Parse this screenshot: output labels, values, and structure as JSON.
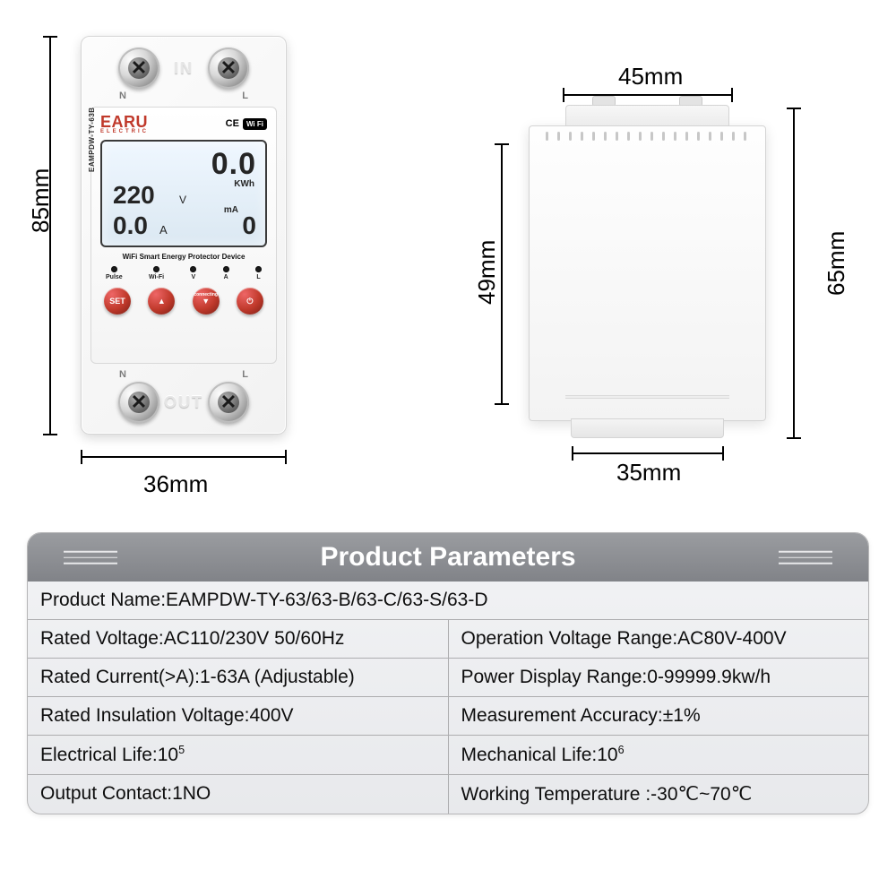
{
  "dimensions": {
    "front_height": "85mm",
    "front_width": "36mm",
    "side_top_width": "45mm",
    "side_bottom_width": "35mm",
    "side_height": "65mm",
    "side_inner_height": "49mm"
  },
  "device": {
    "brand": "EARU",
    "brand_sub": "ELECTRIC",
    "cert": "CE",
    "conn": "Wi Fi",
    "model_vertical": "EAMPDW-TY-63B",
    "subtitle": "WiFi Smart Energy Protector Device",
    "terminal_in": "IN",
    "terminal_out": "OUT",
    "terminal_n": "N",
    "terminal_l": "L",
    "lcd": {
      "kwh_value": "0.0",
      "kwh_unit": "KWh",
      "voltage": "220",
      "voltage_unit": "V",
      "current": "0.0",
      "current_unit": "A",
      "leak_unit": "mA",
      "leak_value": "0"
    },
    "leds": [
      "Pulse",
      "Wi-Fi",
      "V",
      "A",
      "L"
    ],
    "buttons": [
      {
        "label": "SET",
        "bg": "#c0392b"
      },
      {
        "label": "▲",
        "bg": "#c0392b"
      },
      {
        "label": "▼",
        "bg": "#c0392b",
        "tag": "connecting"
      },
      {
        "label": "⏻",
        "bg": "#c0392b"
      }
    ]
  },
  "parameters": {
    "title": "Product Parameters",
    "rows": [
      [
        {
          "label": "Product Name:",
          "value": "EAMPDW-TY-63/63-B/63-C/63-S/63-D",
          "colspan": 2
        }
      ],
      [
        {
          "label": "Rated Voltage:",
          "value": "AC110/230V  50/60Hz"
        },
        {
          "label": "Operation Voltage Range:",
          "value": "AC80V-400V"
        }
      ],
      [
        {
          "label": "Rated Current(>A):",
          "value": "1-63A (Adjustable)"
        },
        {
          "label": "Power Display Range:",
          "value": "0-99999.9kw/h"
        }
      ],
      [
        {
          "label": "Rated Insulation Voltage:",
          "value": "400V"
        },
        {
          "label": "Measurement Accuracy:",
          "value": "±1%"
        }
      ],
      [
        {
          "label": "Electrical Life:",
          "value": "10",
          "sup": "5"
        },
        {
          "label": "Mechanical Life:",
          "value": "10",
          "sup": "6"
        }
      ],
      [
        {
          "label": "Output Contact:",
          "value": "1NO"
        },
        {
          "label": "Working Temperature :",
          "value": "-30℃~70℃"
        }
      ]
    ]
  },
  "colors": {
    "accent_red": "#c0392b",
    "gray_header_top": "#9a9ca0",
    "gray_header_bot": "#818388",
    "rule": "#adadaf",
    "lcd_bg_top": "#eff7ff",
    "lcd_bg_bot": "#dbe8f2"
  }
}
